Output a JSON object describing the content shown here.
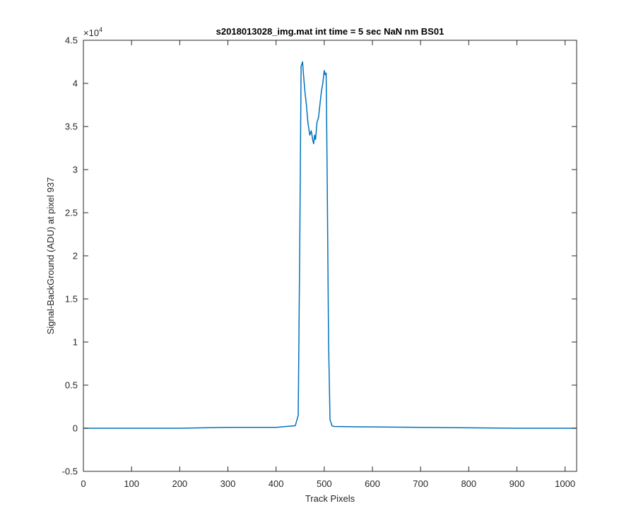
{
  "chart_data": {
    "type": "line",
    "title": "s2018013028_img.mat int time = 5 sec  NaN nm BS01",
    "xlabel": "Track Pixels",
    "ylabel": "Signal-BackGround (ADU) at pixel 937",
    "xlim": [
      0,
      1024
    ],
    "ylim": [
      -5000,
      45000
    ],
    "x_ticks": [
      0,
      100,
      200,
      300,
      400,
      500,
      600,
      700,
      800,
      900,
      1000
    ],
    "y_ticks": [
      -5000,
      0,
      5000,
      10000,
      15000,
      20000,
      25000,
      30000,
      35000,
      40000,
      45000
    ],
    "y_tick_labels": [
      "-0.5",
      "0",
      "0.5",
      "1",
      "1.5",
      "2",
      "2.5",
      "3",
      "3.5",
      "4",
      "4.5"
    ],
    "y_exponent_base": "×10",
    "y_exponent_power": "4",
    "grid": false,
    "legend": "none",
    "series": [
      {
        "color": "#0072BD",
        "x": [
          0,
          100,
          200,
          300,
          400,
          440,
          446,
          449,
          452,
          455,
          457,
          460,
          463,
          466,
          470,
          473,
          476,
          478,
          480,
          482,
          485,
          488,
          491,
          494,
          497,
          500,
          502,
          504,
          506,
          509,
          512,
          516,
          520,
          600,
          700,
          800,
          900,
          1000,
          1024
        ],
        "y": [
          0,
          0,
          0,
          100,
          100,
          300,
          1500,
          20000,
          42000,
          42500,
          41000,
          39000,
          37500,
          35500,
          34000,
          34500,
          33500,
          33000,
          34000,
          33500,
          35500,
          36000,
          37500,
          39000,
          40000,
          41500,
          41000,
          41200,
          30000,
          10000,
          1000,
          300,
          200,
          150,
          100,
          50,
          0,
          0,
          0
        ]
      }
    ]
  }
}
